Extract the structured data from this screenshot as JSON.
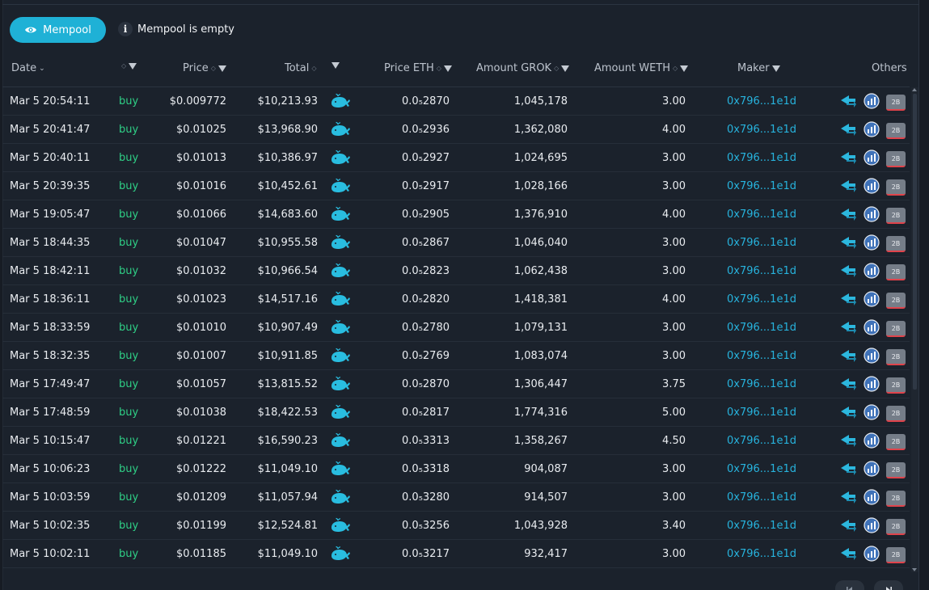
{
  "mempool": {
    "button_label": "Mempool",
    "status_text": "Mempool is empty"
  },
  "columns": {
    "date": "Date",
    "price": "Price",
    "total": "Total",
    "price_eth": "Price ETH",
    "amount_grok": "Amount GROK",
    "amount_weth": "Amount WETH",
    "maker": "Maker",
    "others": "Others"
  },
  "badge_label": "2B",
  "trades": [
    {
      "date": "Mar 5 20:54:11",
      "type": "buy",
      "price": "$0.009772",
      "total": "$10,213.93",
      "price_eth": "0.0₅2870",
      "amount_grok": "1,045,178",
      "amount_weth": "3.00",
      "maker": "0x796...1e1d"
    },
    {
      "date": "Mar 5 20:41:47",
      "type": "buy",
      "price": "$0.01025",
      "total": "$13,968.90",
      "price_eth": "0.0₅2936",
      "amount_grok": "1,362,080",
      "amount_weth": "4.00",
      "maker": "0x796...1e1d"
    },
    {
      "date": "Mar 5 20:40:11",
      "type": "buy",
      "price": "$0.01013",
      "total": "$10,386.97",
      "price_eth": "0.0₅2927",
      "amount_grok": "1,024,695",
      "amount_weth": "3.00",
      "maker": "0x796...1e1d"
    },
    {
      "date": "Mar 5 20:39:35",
      "type": "buy",
      "price": "$0.01016",
      "total": "$10,452.61",
      "price_eth": "0.0₅2917",
      "amount_grok": "1,028,166",
      "amount_weth": "3.00",
      "maker": "0x796...1e1d"
    },
    {
      "date": "Mar 5 19:05:47",
      "type": "buy",
      "price": "$0.01066",
      "total": "$14,683.60",
      "price_eth": "0.0₅2905",
      "amount_grok": "1,376,910",
      "amount_weth": "4.00",
      "maker": "0x796...1e1d"
    },
    {
      "date": "Mar 5 18:44:35",
      "type": "buy",
      "price": "$0.01047",
      "total": "$10,955.58",
      "price_eth": "0.0₅2867",
      "amount_grok": "1,046,040",
      "amount_weth": "3.00",
      "maker": "0x796...1e1d"
    },
    {
      "date": "Mar 5 18:42:11",
      "type": "buy",
      "price": "$0.01032",
      "total": "$10,966.54",
      "price_eth": "0.0₅2823",
      "amount_grok": "1,062,438",
      "amount_weth": "3.00",
      "maker": "0x796...1e1d"
    },
    {
      "date": "Mar 5 18:36:11",
      "type": "buy",
      "price": "$0.01023",
      "total": "$14,517.16",
      "price_eth": "0.0₅2820",
      "amount_grok": "1,418,381",
      "amount_weth": "4.00",
      "maker": "0x796...1e1d"
    },
    {
      "date": "Mar 5 18:33:59",
      "type": "buy",
      "price": "$0.01010",
      "total": "$10,907.49",
      "price_eth": "0.0₅2780",
      "amount_grok": "1,079,131",
      "amount_weth": "3.00",
      "maker": "0x796...1e1d"
    },
    {
      "date": "Mar 5 18:32:35",
      "type": "buy",
      "price": "$0.01007",
      "total": "$10,911.85",
      "price_eth": "0.0₅2769",
      "amount_grok": "1,083,074",
      "amount_weth": "3.00",
      "maker": "0x796...1e1d"
    },
    {
      "date": "Mar 5 17:49:47",
      "type": "buy",
      "price": "$0.01057",
      "total": "$13,815.52",
      "price_eth": "0.0₅2870",
      "amount_grok": "1,306,447",
      "amount_weth": "3.75",
      "maker": "0x796...1e1d"
    },
    {
      "date": "Mar 5 17:48:59",
      "type": "buy",
      "price": "$0.01038",
      "total": "$18,422.53",
      "price_eth": "0.0₅2817",
      "amount_grok": "1,774,316",
      "amount_weth": "5.00",
      "maker": "0x796...1e1d"
    },
    {
      "date": "Mar 5 10:15:47",
      "type": "buy",
      "price": "$0.01221",
      "total": "$16,590.23",
      "price_eth": "0.0₅3313",
      "amount_grok": "1,358,267",
      "amount_weth": "4.50",
      "maker": "0x796...1e1d"
    },
    {
      "date": "Mar 5 10:06:23",
      "type": "buy",
      "price": "$0.01222",
      "total": "$11,049.10",
      "price_eth": "0.0₅3318",
      "amount_grok": "904,087",
      "amount_weth": "3.00",
      "maker": "0x796...1e1d"
    },
    {
      "date": "Mar 5 10:03:59",
      "type": "buy",
      "price": "$0.01209",
      "total": "$11,057.94",
      "price_eth": "0.0₅3280",
      "amount_grok": "914,507",
      "amount_weth": "3.00",
      "maker": "0x796...1e1d"
    },
    {
      "date": "Mar 5 10:02:35",
      "type": "buy",
      "price": "$0.01199",
      "total": "$12,524.81",
      "price_eth": "0.0₅3256",
      "amount_grok": "1,043,928",
      "amount_weth": "3.40",
      "maker": "0x796...1e1d"
    },
    {
      "date": "Mar 5 10:02:11",
      "type": "buy",
      "price": "$0.01185",
      "total": "$11,049.10",
      "price_eth": "0.0₅3217",
      "amount_grok": "932,417",
      "amount_weth": "3.00",
      "maker": "0x796...1e1d"
    }
  ],
  "icons": {
    "eye": "eye-icon",
    "info": "info-icon",
    "whale": "whale-icon",
    "arrow": "arrow-route-icon",
    "chart": "chart-circle-icon"
  },
  "colors": {
    "accent": "#1fb1d6",
    "buy": "#2fcf86",
    "maker": "#27b3dd",
    "badge_bar": "#e0434b"
  }
}
